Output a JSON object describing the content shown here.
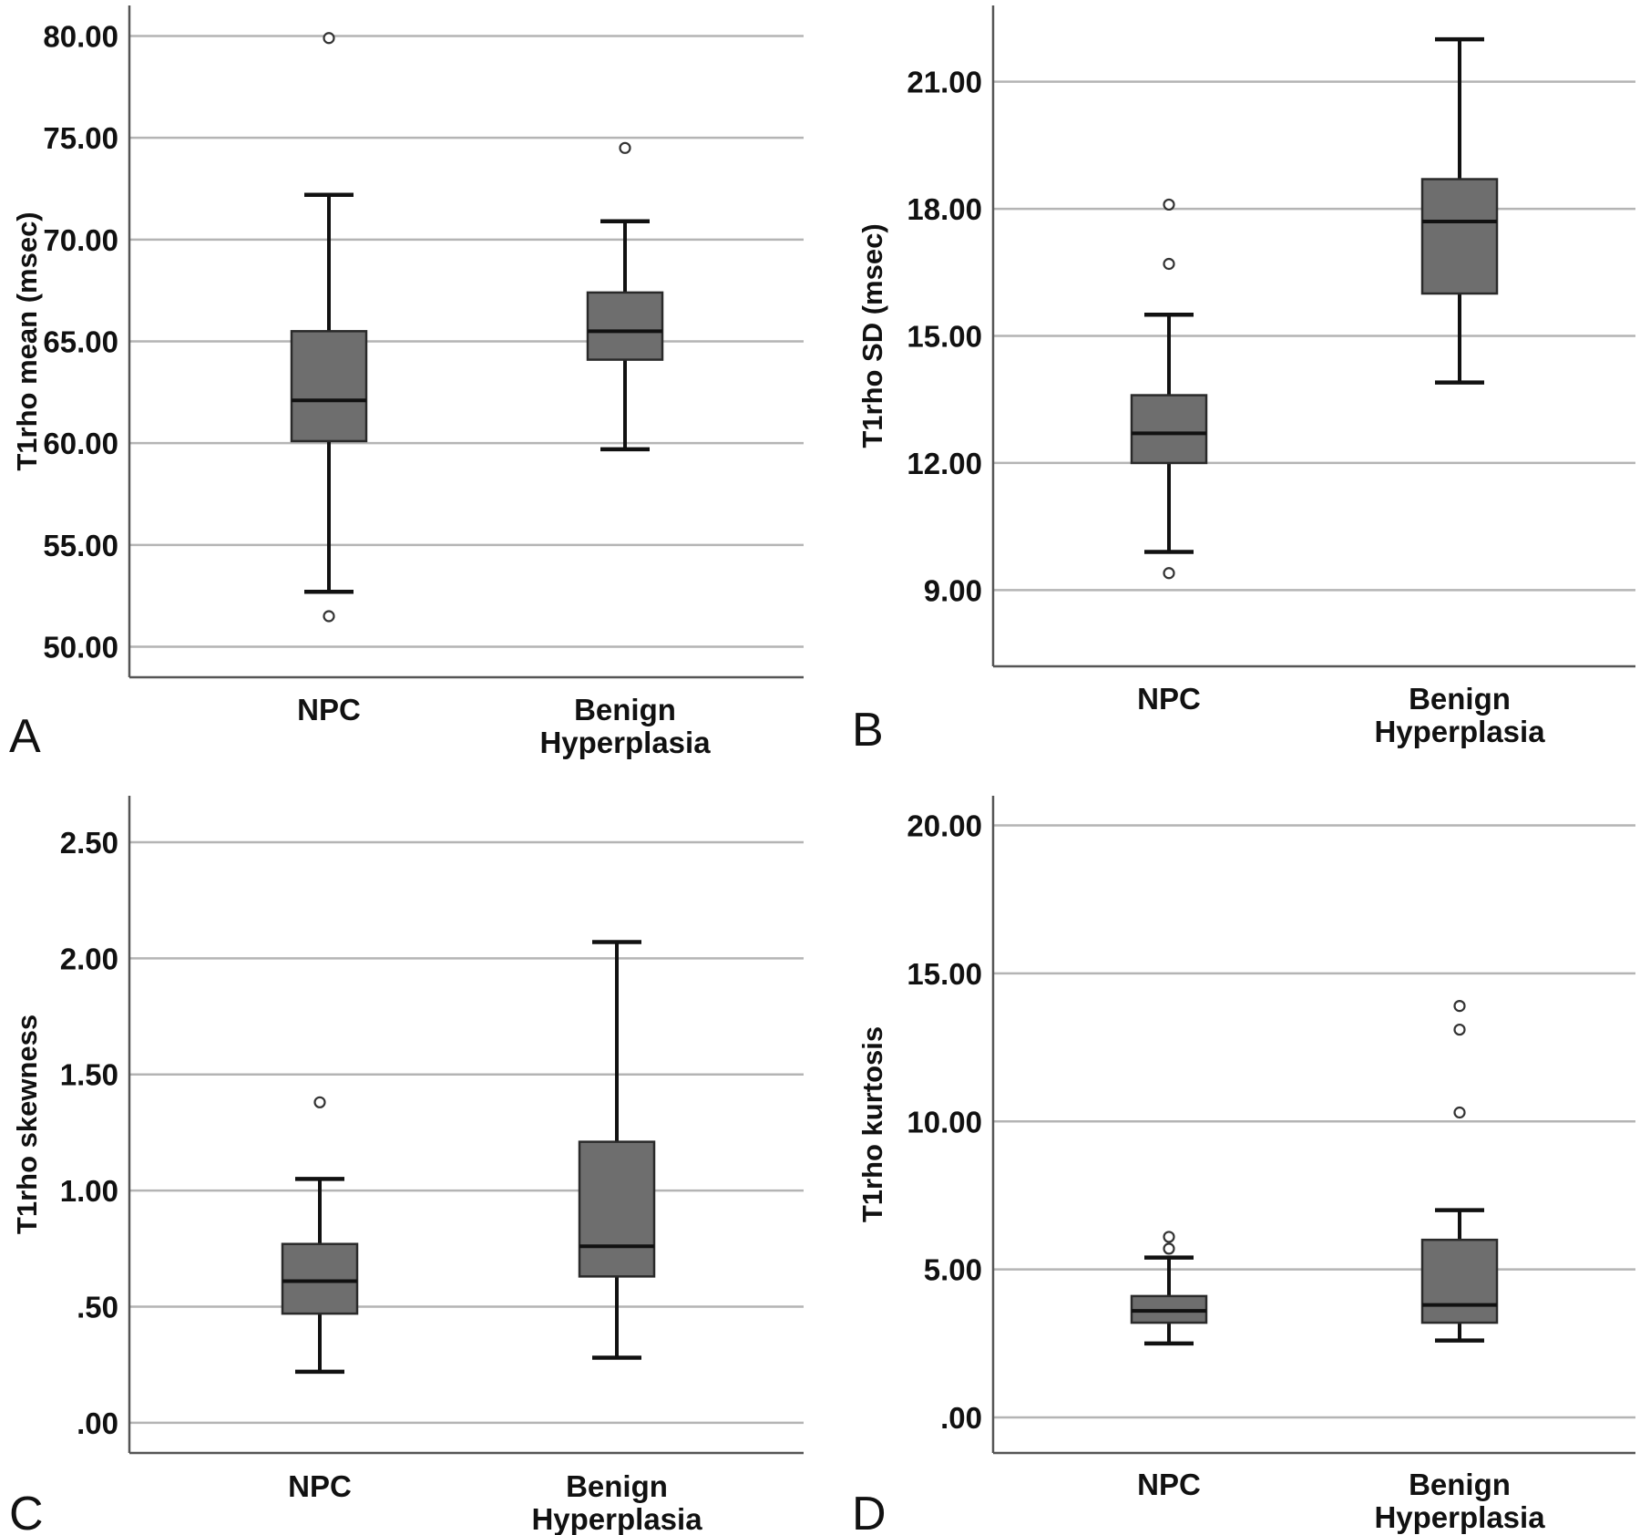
{
  "chart_data": [
    {
      "type": "boxplot",
      "panel_label": "A",
      "ylabel": "T1rho mean (msec)",
      "ylim": [
        48.5,
        81.5
      ],
      "ticks": [
        {
          "value": 50,
          "label": "50.00"
        },
        {
          "value": 55,
          "label": "55.00"
        },
        {
          "value": 60,
          "label": "60.00"
        },
        {
          "value": 65,
          "label": "65.00"
        },
        {
          "value": 70,
          "label": "70.00"
        },
        {
          "value": 75,
          "label": "75.00"
        },
        {
          "value": 80,
          "label": "80.00"
        }
      ],
      "grid": true,
      "groups": [
        {
          "label_lines": [
            "NPC"
          ],
          "whisker_low": 52.7,
          "q1": 60.1,
          "median": 62.1,
          "q3": 65.5,
          "whisker_high": 72.2,
          "outliers": [
            79.9,
            51.5
          ]
        },
        {
          "label_lines": [
            "Benign",
            "Hyperplasia"
          ],
          "whisker_low": 59.7,
          "q1": 64.1,
          "median": 65.5,
          "q3": 67.4,
          "whisker_high": 70.9,
          "outliers": [
            74.5
          ]
        }
      ]
    },
    {
      "type": "boxplot",
      "panel_label": "B",
      "ylabel": "T1rho SD (msec)",
      "ylim": [
        7.2,
        22.8
      ],
      "ticks": [
        {
          "value": 9,
          "label": "9.00"
        },
        {
          "value": 12,
          "label": "12.00"
        },
        {
          "value": 15,
          "label": "15.00"
        },
        {
          "value": 18,
          "label": "18.00"
        },
        {
          "value": 21,
          "label": "21.00"
        }
      ],
      "grid": true,
      "groups": [
        {
          "label_lines": [
            "NPC"
          ],
          "whisker_low": 9.9,
          "q1": 12.0,
          "median": 12.7,
          "q3": 13.6,
          "whisker_high": 15.5,
          "outliers": [
            18.1,
            16.7,
            9.4
          ]
        },
        {
          "label_lines": [
            "Benign",
            "Hyperplasia"
          ],
          "whisker_low": 13.9,
          "q1": 16.0,
          "median": 17.7,
          "q3": 18.7,
          "whisker_high": 22.0,
          "outliers": []
        }
      ]
    },
    {
      "type": "boxplot",
      "panel_label": "C",
      "ylabel": "T1rho skewness",
      "ylim": [
        -0.13,
        2.7
      ],
      "ticks": [
        {
          "value": 0,
          "label": ".00"
        },
        {
          "value": 0.5,
          "label": ".50"
        },
        {
          "value": 1.0,
          "label": "1.00"
        },
        {
          "value": 1.5,
          "label": "1.50"
        },
        {
          "value": 2.0,
          "label": "2.00"
        },
        {
          "value": 2.5,
          "label": "2.50"
        }
      ],
      "grid": true,
      "groups": [
        {
          "label_lines": [
            "NPC"
          ],
          "whisker_low": 0.22,
          "q1": 0.47,
          "median": 0.61,
          "q3": 0.77,
          "whisker_high": 1.05,
          "outliers": [
            1.38
          ]
        },
        {
          "label_lines": [
            "Benign",
            "Hyperplasia"
          ],
          "whisker_low": 0.28,
          "q1": 0.63,
          "median": 0.76,
          "q3": 1.21,
          "whisker_high": 2.07,
          "outliers": []
        }
      ]
    },
    {
      "type": "boxplot",
      "panel_label": "D",
      "ylabel": "T1rho kurtosis",
      "ylim": [
        -1.2,
        21.0
      ],
      "ticks": [
        {
          "value": 0,
          "label": ".00"
        },
        {
          "value": 5,
          "label": "5.00"
        },
        {
          "value": 10,
          "label": "10.00"
        },
        {
          "value": 15,
          "label": "15.00"
        },
        {
          "value": 20,
          "label": "20.00"
        }
      ],
      "grid": true,
      "groups": [
        {
          "label_lines": [
            "NPC"
          ],
          "whisker_low": 2.5,
          "q1": 3.2,
          "median": 3.6,
          "q3": 4.1,
          "whisker_high": 5.4,
          "outliers": [
            6.1,
            5.7
          ]
        },
        {
          "label_lines": [
            "Benign",
            "Hyperplasia"
          ],
          "whisker_low": 2.6,
          "q1": 3.2,
          "median": 3.8,
          "q3": 6.0,
          "whisker_high": 7.0,
          "outliers": [
            13.9,
            13.1,
            10.3
          ]
        }
      ]
    }
  ],
  "colors": {
    "box_fill": "#6e6e6e",
    "box_stroke": "#2a2a2a",
    "grid": "#b4b4b4",
    "axis": "#555555",
    "whisker": "#111111"
  }
}
